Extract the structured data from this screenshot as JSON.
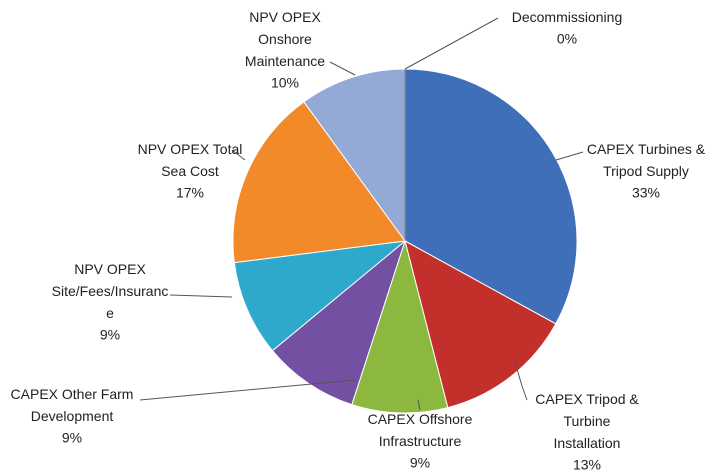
{
  "chart_data": {
    "type": "pie",
    "categories": [
      "CAPEX Turbines & Tripod Supply",
      "CAPEX Tripod & Turbine Installation",
      "CAPEX Offshore Infrastructure",
      "CAPEX Other Farm Development",
      "NPV OPEX Site/Fees/Insurance",
      "NPV OPEX Total Sea Cost",
      "NPV OPEX Onshore Maintenance",
      "Decommissioning"
    ],
    "values": [
      33,
      13,
      9,
      9,
      9,
      17,
      10,
      0
    ],
    "value_labels": [
      "33%",
      "13%",
      "9%",
      "9%",
      "9%",
      "17%",
      "10%",
      "0%"
    ],
    "colors": [
      "#3f6fb8",
      "#c3302c",
      "#8db83f",
      "#7350a2",
      "#2ea9cb",
      "#f28a2a",
      "#93aad6",
      "#a0a0a0"
    ]
  }
}
